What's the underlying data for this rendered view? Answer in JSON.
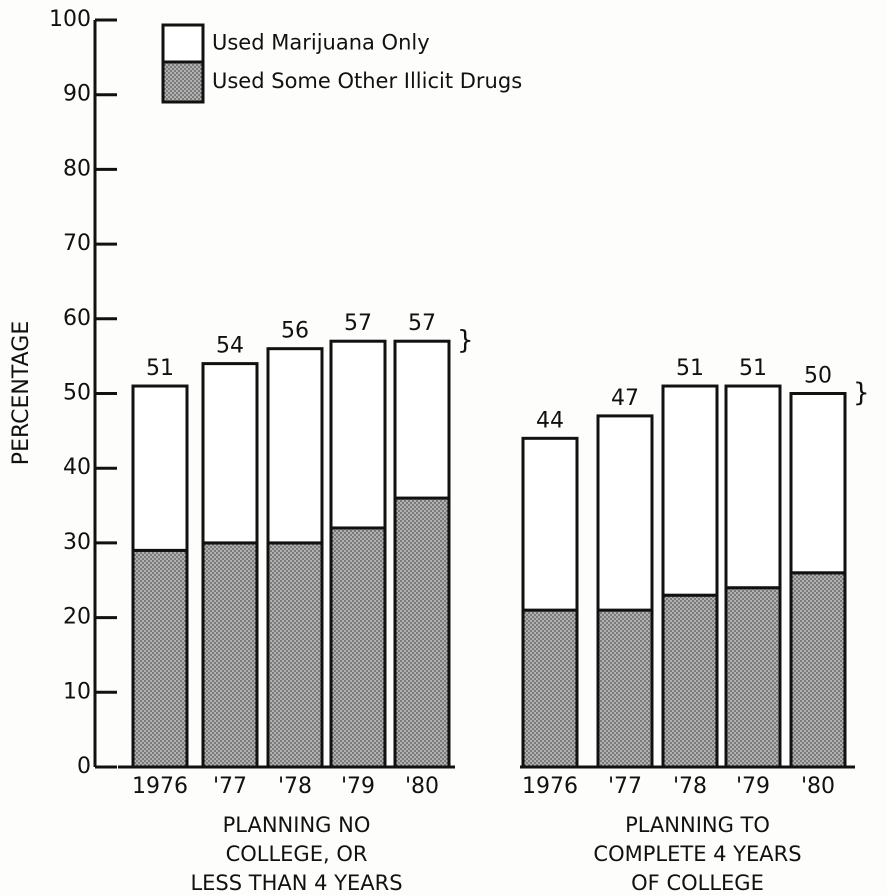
{
  "chart_data": {
    "type": "bar",
    "stacked": true,
    "ylabel": "PERCENTAGE",
    "ylim": [
      0,
      100
    ],
    "yticks": [
      0,
      10,
      20,
      30,
      40,
      50,
      60,
      70,
      80,
      90,
      100
    ],
    "series": [
      {
        "name": "Used Some Other Illicit Drugs",
        "color": "#a9a9a9"
      },
      {
        "name": "Used Marijuana Only",
        "color": "#ffffff"
      }
    ],
    "groups": [
      {
        "label": [
          "PLANNING NO",
          "COLLEGE, OR",
          "LESS THAN 4 YEARS"
        ],
        "categories": [
          "1976",
          "'77",
          "'78",
          "'79",
          "'80"
        ],
        "series": [
          {
            "values": [
              29,
              30,
              30,
              32,
              36
            ]
          },
          {
            "values": [
              22,
              24,
              26,
              25,
              21
            ]
          }
        ],
        "totals": [
          51,
          54,
          56,
          57,
          57
        ]
      },
      {
        "label": [
          "PLANNING TO",
          "COMPLETE 4 YEARS",
          "OF COLLEGE"
        ],
        "categories": [
          "1976",
          "'77",
          "'78",
          "'79",
          "'80"
        ],
        "series": [
          {
            "values": [
              21,
              21,
              23,
              24,
              26
            ]
          },
          {
            "values": [
              23,
              26,
              28,
              27,
              24
            ]
          }
        ],
        "totals": [
          44,
          47,
          51,
          51,
          50
        ]
      }
    ]
  }
}
